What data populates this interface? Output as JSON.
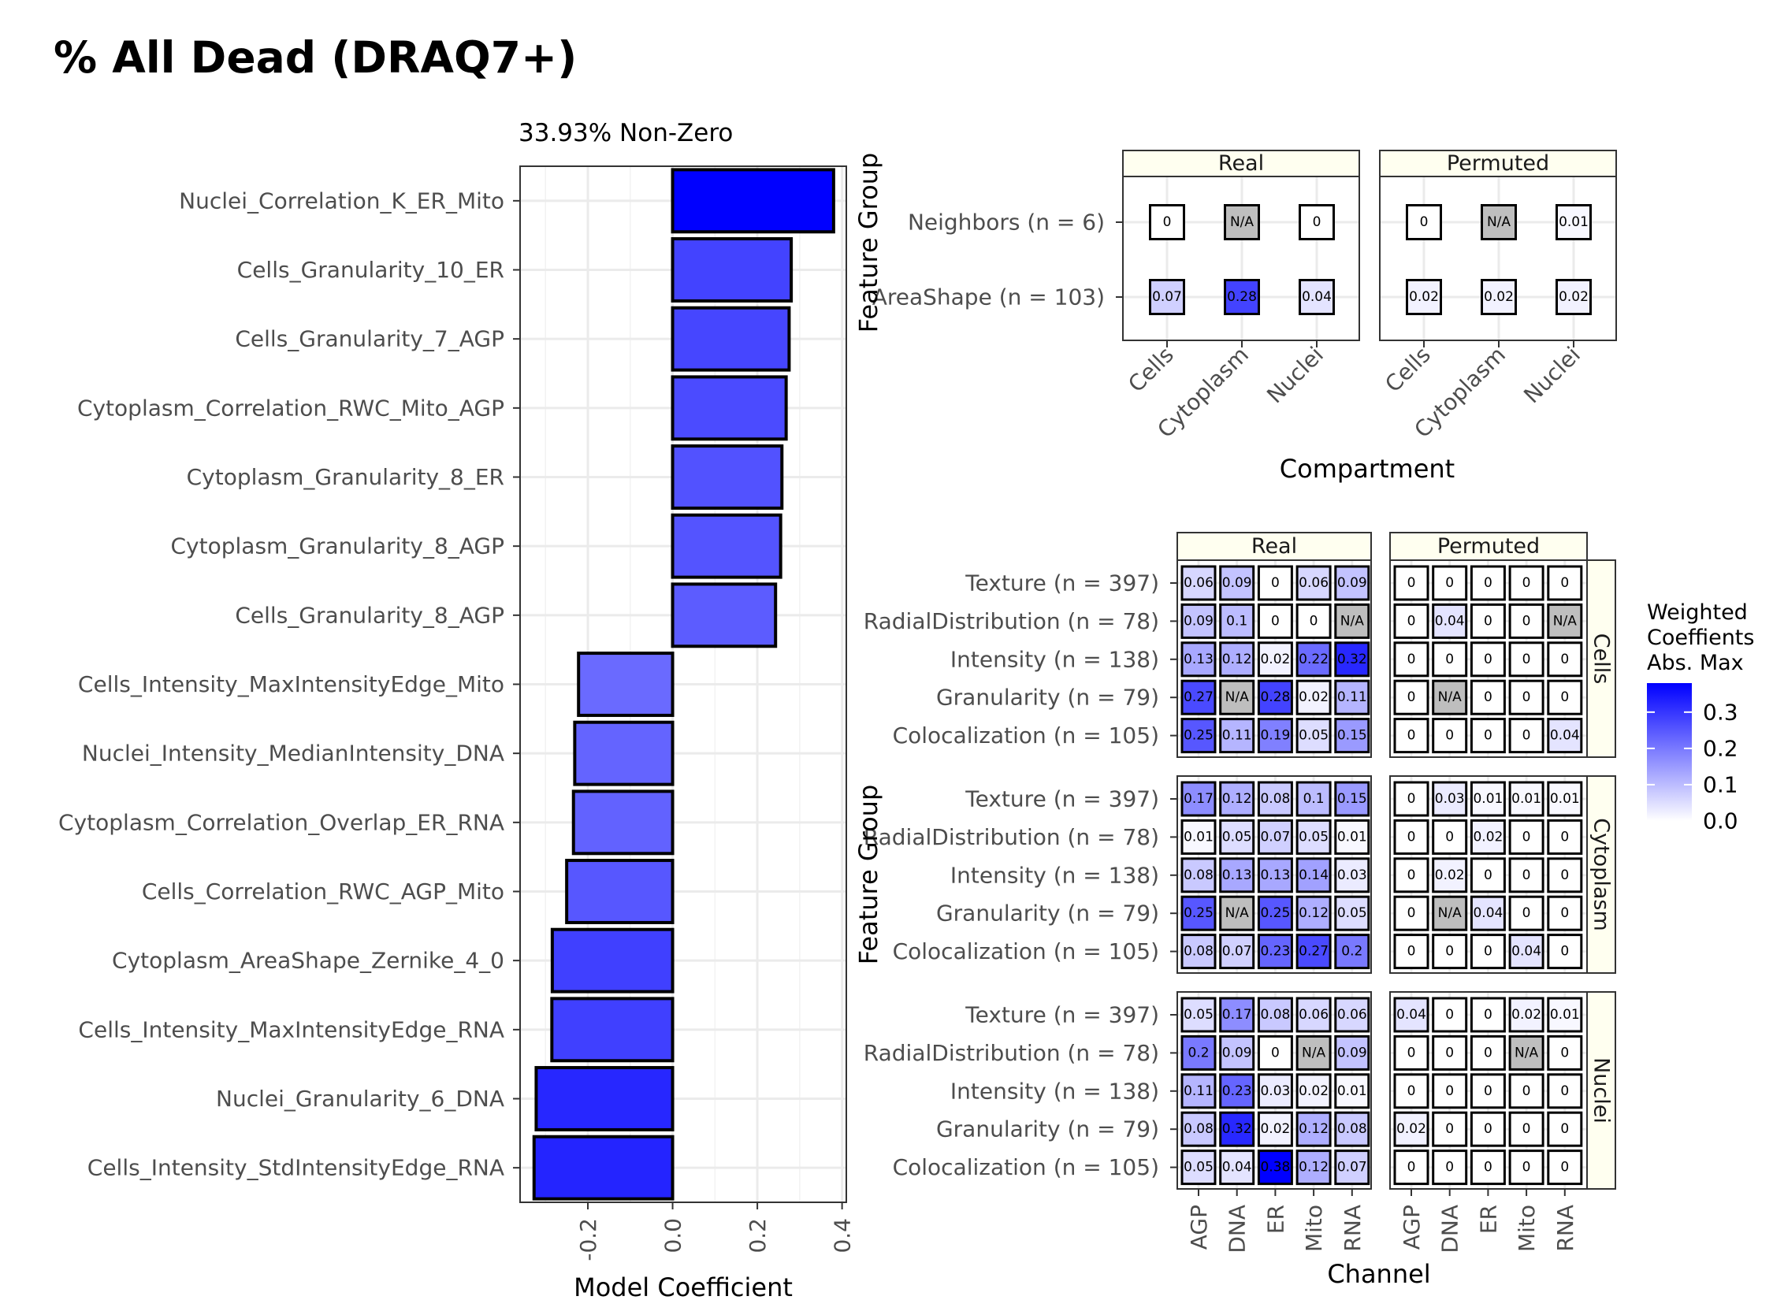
{
  "title": "% All Dead (DRAQ7+)",
  "colors": {
    "low": "#ffffff",
    "high": "#0000ff",
    "na": "#bebebe",
    "strip_bg": "#fffff0",
    "grid": "#ebebeb"
  },
  "chart_data": [
    {
      "id": "coefficients",
      "type": "bar",
      "orientation": "horizontal",
      "subtitle": "33.93% Non-Zero",
      "xlabel": "Model Coefficient",
      "ylabel": "",
      "xlim": [
        -0.36,
        0.41
      ],
      "x_ticks": [
        -0.2,
        0.0,
        0.2,
        0.4
      ],
      "x_tick_labels": [
        "-0.2",
        "0.0",
        "0.2",
        "0.4"
      ],
      "categories": [
        "Nuclei_Correlation_K_ER_Mito",
        "Cells_Granularity_10_ER",
        "Cells_Granularity_7_AGP",
        "Cytoplasm_Correlation_RWC_Mito_AGP",
        "Cytoplasm_Granularity_8_ER",
        "Cytoplasm_Granularity_8_AGP",
        "Cells_Granularity_8_AGP",
        "Cells_Intensity_MaxIntensityEdge_Mito",
        "Nuclei_Intensity_MedianIntensity_DNA",
        "Cytoplasm_Correlation_Overlap_ER_RNA",
        "Cells_Correlation_RWC_AGP_Mito",
        "Cytoplasm_AreaShape_Zernike_4_0",
        "Cells_Intensity_MaxIntensityEdge_RNA",
        "Nuclei_Granularity_6_DNA",
        "Cells_Intensity_StdIntensityEdge_RNA"
      ],
      "values": [
        0.38,
        0.28,
        0.275,
        0.268,
        0.258,
        0.255,
        0.243,
        -0.222,
        -0.231,
        -0.234,
        -0.25,
        -0.284,
        -0.285,
        -0.322,
        -0.327
      ],
      "fill_scale_max": 0.38,
      "grid": true
    },
    {
      "id": "compartment_heatmap",
      "type": "heatmap",
      "xlabel": "Compartment",
      "ylabel": "Feature Group",
      "facets": [
        "Real",
        "Permuted"
      ],
      "x": [
        "Cells",
        "Cytoplasm",
        "Nuclei"
      ],
      "y": [
        "Neighbors (n = 6)",
        "AreaShape (n = 103)"
      ],
      "cells": {
        "Real": [
          [
            "0",
            "N/A",
            "0"
          ],
          [
            "0.07",
            "0.28",
            "0.04"
          ]
        ],
        "Permuted": [
          [
            "0",
            "N/A",
            "0.01"
          ],
          [
            "0.02",
            "0.02",
            "0.02"
          ]
        ]
      }
    },
    {
      "id": "channel_heatmap",
      "type": "heatmap",
      "xlabel": "Channel",
      "ylabel": "Feature Group",
      "col_facets": [
        "Real",
        "Permuted"
      ],
      "row_facets": [
        "Cells",
        "Cytoplasm",
        "Nuclei"
      ],
      "x": [
        "AGP",
        "DNA",
        "ER",
        "Mito",
        "RNA"
      ],
      "y": [
        "Texture (n = 397)",
        "RadialDistribution (n = 78)",
        "Intensity (n = 138)",
        "Granularity (n = 79)",
        "Colocalization (n = 105)"
      ],
      "cells": {
        "Cells": {
          "Real": [
            [
              "0.06",
              "0.09",
              "0",
              "0.06",
              "0.09"
            ],
            [
              "0.09",
              "0.1",
              "0",
              "0",
              "N/A"
            ],
            [
              "0.13",
              "0.12",
              "0.02",
              "0.22",
              "0.32"
            ],
            [
              "0.27",
              "N/A",
              "0.28",
              "0.02",
              "0.11"
            ],
            [
              "0.25",
              "0.11",
              "0.19",
              "0.05",
              "0.15"
            ]
          ],
          "Permuted": [
            [
              "0",
              "0",
              "0",
              "0",
              "0"
            ],
            [
              "0",
              "0.04",
              "0",
              "0",
              "N/A"
            ],
            [
              "0",
              "0",
              "0",
              "0",
              "0"
            ],
            [
              "0",
              "N/A",
              "0",
              "0",
              "0"
            ],
            [
              "0",
              "0",
              "0",
              "0",
              "0.04"
            ]
          ]
        },
        "Cytoplasm": {
          "Real": [
            [
              "0.17",
              "0.12",
              "0.08",
              "0.1",
              "0.15"
            ],
            [
              "0.01",
              "0.05",
              "0.07",
              "0.05",
              "0.01"
            ],
            [
              "0.08",
              "0.13",
              "0.13",
              "0.14",
              "0.03"
            ],
            [
              "0.25",
              "N/A",
              "0.25",
              "0.12",
              "0.05"
            ],
            [
              "0.08",
              "0.07",
              "0.23",
              "0.27",
              "0.2"
            ]
          ],
          "Permuted": [
            [
              "0",
              "0.03",
              "0.01",
              "0.01",
              "0.01"
            ],
            [
              "0",
              "0",
              "0.02",
              "0",
              "0"
            ],
            [
              "0",
              "0.02",
              "0",
              "0",
              "0"
            ],
            [
              "0",
              "N/A",
              "0.04",
              "0",
              "0"
            ],
            [
              "0",
              "0",
              "0",
              "0.04",
              "0"
            ]
          ]
        },
        "Nuclei": {
          "Real": [
            [
              "0.05",
              "0.17",
              "0.08",
              "0.06",
              "0.06"
            ],
            [
              "0.2",
              "0.09",
              "0",
              "N/A",
              "0.09"
            ],
            [
              "0.11",
              "0.23",
              "0.03",
              "0.02",
              "0.01"
            ],
            [
              "0.08",
              "0.32",
              "0.02",
              "0.12",
              "0.08"
            ],
            [
              "0.05",
              "0.04",
              "0.38",
              "0.12",
              "0.07"
            ]
          ],
          "Permuted": [
            [
              "0.04",
              "0",
              "0",
              "0.02",
              "0.01"
            ],
            [
              "0",
              "0",
              "0",
              "N/A",
              "0"
            ],
            [
              "0",
              "0",
              "0",
              "0",
              "0"
            ],
            [
              "0.02",
              "0",
              "0",
              "0",
              "0"
            ],
            [
              "0",
              "0",
              "0",
              "0",
              "0"
            ]
          ]
        }
      }
    }
  ],
  "legend": {
    "title_lines": [
      "Weighted",
      "Coeffients",
      "Abs. Max"
    ],
    "ticks": [
      0.0,
      0.1,
      0.2,
      0.3
    ],
    "tick_labels": [
      "0.0",
      "0.1",
      "0.2",
      "0.3"
    ],
    "scale_max": 0.38
  }
}
